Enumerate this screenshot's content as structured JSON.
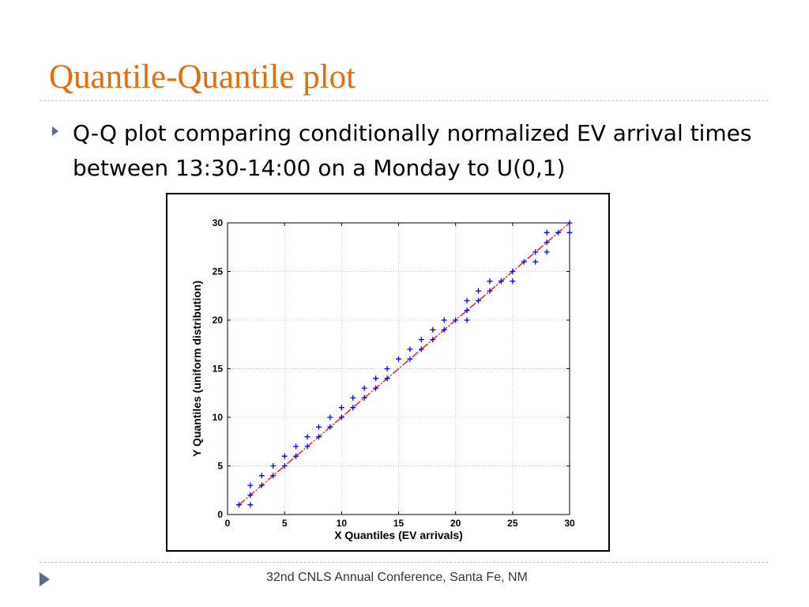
{
  "slide": {
    "title": "Quantile-Quantile plot",
    "bullet_text": "Q-Q plot comparing conditionally normalized EV arrival times between 13:30-14:00 on a Monday to U(0,1)",
    "footer": "32nd CNLS Annual Conference, Santa Fe, NM"
  },
  "colors": {
    "title": "#e46c0a",
    "bullet": "#5d6b8a",
    "points": "#0000ff",
    "reference_line": "#ff0000"
  },
  "icons": {
    "bullet": "triangle-right-icon",
    "footer": "triangle-right-icon"
  },
  "chart_data": {
    "type": "scatter",
    "xlabel": "X Quantiles (EV arrivals)",
    "ylabel": "Y Quantiles (uniform distribution)",
    "xlim": [
      0,
      30
    ],
    "ylim": [
      0,
      30
    ],
    "xticks": [
      0,
      5,
      10,
      15,
      20,
      25,
      30
    ],
    "yticks": [
      0,
      5,
      10,
      15,
      20,
      25,
      30
    ],
    "grid": true,
    "marker": "plus",
    "reference_line": {
      "from": [
        1,
        1
      ],
      "to": [
        30,
        30
      ],
      "style": "dash-dot"
    },
    "points": [
      [
        1,
        1
      ],
      [
        2,
        1
      ],
      [
        2,
        2
      ],
      [
        2,
        3
      ],
      [
        3,
        3
      ],
      [
        3,
        4
      ],
      [
        4,
        4
      ],
      [
        4,
        5
      ],
      [
        5,
        5
      ],
      [
        5,
        6
      ],
      [
        6,
        6
      ],
      [
        6,
        7
      ],
      [
        7,
        7
      ],
      [
        7,
        8
      ],
      [
        8,
        8
      ],
      [
        8,
        9
      ],
      [
        9,
        9
      ],
      [
        9,
        10
      ],
      [
        10,
        10
      ],
      [
        10,
        11
      ],
      [
        11,
        11
      ],
      [
        11,
        12
      ],
      [
        12,
        12
      ],
      [
        12,
        13
      ],
      [
        13,
        13
      ],
      [
        13,
        14
      ],
      [
        14,
        14
      ],
      [
        14,
        15
      ],
      [
        15,
        16
      ],
      [
        16,
        16
      ],
      [
        16,
        17
      ],
      [
        17,
        17
      ],
      [
        17,
        18
      ],
      [
        18,
        18
      ],
      [
        18,
        19
      ],
      [
        19,
        19
      ],
      [
        19,
        20
      ],
      [
        20,
        20
      ],
      [
        21,
        20
      ],
      [
        21,
        21
      ],
      [
        21,
        22
      ],
      [
        22,
        22
      ],
      [
        22,
        23
      ],
      [
        23,
        23
      ],
      [
        23,
        24
      ],
      [
        24,
        24
      ],
      [
        25,
        24
      ],
      [
        25,
        25
      ],
      [
        26,
        26
      ],
      [
        27,
        26
      ],
      [
        27,
        27
      ],
      [
        28,
        27
      ],
      [
        28,
        28
      ],
      [
        28,
        29
      ],
      [
        29,
        29
      ],
      [
        30,
        29
      ],
      [
        30,
        30
      ]
    ]
  }
}
